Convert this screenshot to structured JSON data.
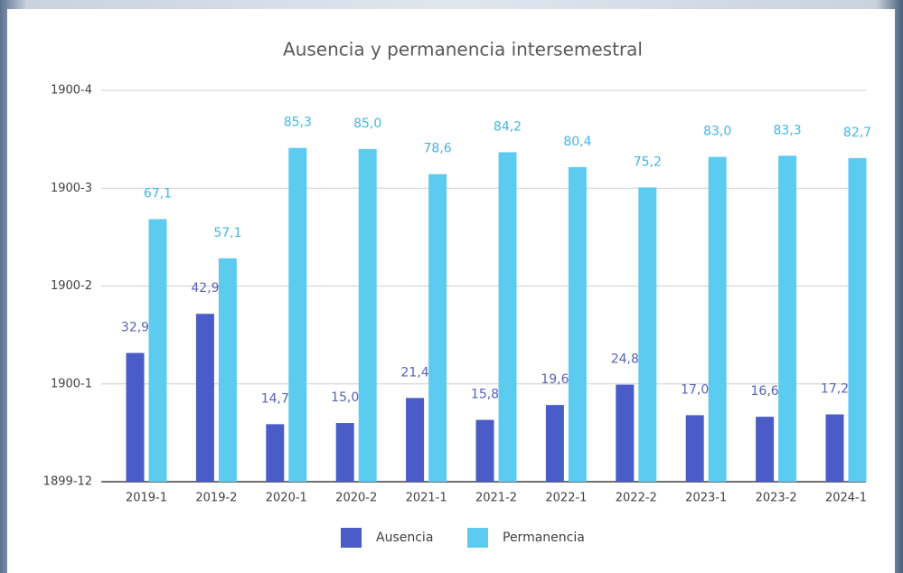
{
  "chart_data": {
    "type": "bar",
    "title": "Ausencia y permanencia intersemestral",
    "categories": [
      "2019-1",
      "2019-2",
      "2020-1",
      "2020-2",
      "2021-1",
      "2021-2",
      "2022-1",
      "2022-2",
      "2023-1",
      "2023-2",
      "2024-1"
    ],
    "series": [
      {
        "name": "Ausencia",
        "color": "#4a5cc7",
        "label_color": "#5863b8",
        "values": [
          32.9,
          42.9,
          14.7,
          15.0,
          21.4,
          15.8,
          19.6,
          24.8,
          17.0,
          16.6,
          17.2
        ],
        "value_labels": [
          "32,9",
          "42,9",
          "14,7",
          "15,0",
          "21,4",
          "15,8",
          "19,6",
          "24,8",
          "17,0",
          "16,6",
          "17,2"
        ]
      },
      {
        "name": "Permanencia",
        "color": "#5ccbf0",
        "label_color": "#3fb6e6",
        "values": [
          67.1,
          57.1,
          85.3,
          85.0,
          78.6,
          84.2,
          80.4,
          75.2,
          83.0,
          83.3,
          82.7
        ],
        "value_labels": [
          "67,1",
          "57,1",
          "85,3",
          "85,0",
          "78,6",
          "84,2",
          "80,4",
          "75,2",
          "83,0",
          "83,3",
          "82,7"
        ]
      }
    ],
    "ylim": [
      0,
      100
    ],
    "yticks": [
      {
        "value": 0,
        "label": "1899-12"
      },
      {
        "value": 25,
        "label": "1900-1"
      },
      {
        "value": 50,
        "label": "1900-2"
      },
      {
        "value": 75,
        "label": "1900-3"
      },
      {
        "value": 100,
        "label": "1900-4"
      }
    ],
    "grid": true,
    "legend": "bottom"
  }
}
